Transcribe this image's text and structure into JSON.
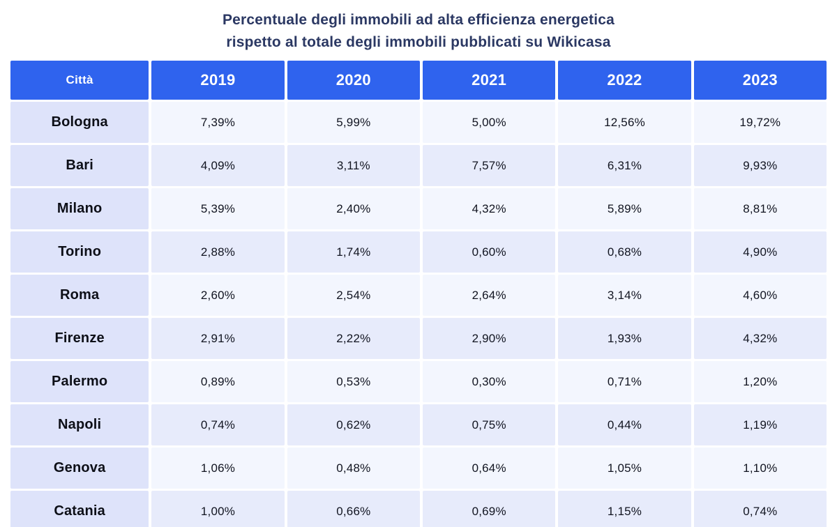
{
  "title": {
    "line1": "Percentuale degli immobili ad alta efficienza energetica",
    "line2": "rispetto al totale degli immobili pubblicati su Wikicasa"
  },
  "colors": {
    "header_bg": "#2f63ee",
    "header_text": "#ffffff",
    "city_column_bg": "#dee3fa",
    "row_odd_bg": "#f3f6fe",
    "row_even_bg": "#e7ebfb",
    "title_text": "#2b3863",
    "cell_text": "#111420"
  },
  "chart_data": {
    "type": "table",
    "title": "Percentuale degli immobili ad alta efficienza energetica rispetto al totale degli immobili pubblicati su Wikicasa",
    "columns": [
      "Città",
      "2019",
      "2020",
      "2021",
      "2022",
      "2023"
    ],
    "rows": [
      {
        "city": "Bologna",
        "values": [
          "7,39%",
          "5,99%",
          "5,00%",
          "12,56%",
          "19,72%"
        ]
      },
      {
        "city": "Bari",
        "values": [
          "4,09%",
          "3,11%",
          "7,57%",
          "6,31%",
          "9,93%"
        ]
      },
      {
        "city": "Milano",
        "values": [
          "5,39%",
          "2,40%",
          "4,32%",
          "5,89%",
          "8,81%"
        ]
      },
      {
        "city": "Torino",
        "values": [
          "2,88%",
          "1,74%",
          "0,60%",
          "0,68%",
          "4,90%"
        ]
      },
      {
        "city": "Roma",
        "values": [
          "2,60%",
          "2,54%",
          "2,64%",
          "3,14%",
          "4,60%"
        ]
      },
      {
        "city": "Firenze",
        "values": [
          "2,91%",
          "2,22%",
          "2,90%",
          "1,93%",
          "4,32%"
        ]
      },
      {
        "city": "Palermo",
        "values": [
          "0,89%",
          "0,53%",
          "0,30%",
          "0,71%",
          "1,20%"
        ]
      },
      {
        "city": "Napoli",
        "values": [
          "0,74%",
          "0,62%",
          "0,75%",
          "0,44%",
          "1,19%"
        ]
      },
      {
        "city": "Genova",
        "values": [
          "1,06%",
          "0,48%",
          "0,64%",
          "1,05%",
          "1,10%"
        ]
      },
      {
        "city": "Catania",
        "values": [
          "1,00%",
          "0,66%",
          "0,69%",
          "1,15%",
          "0,74%"
        ]
      }
    ]
  }
}
